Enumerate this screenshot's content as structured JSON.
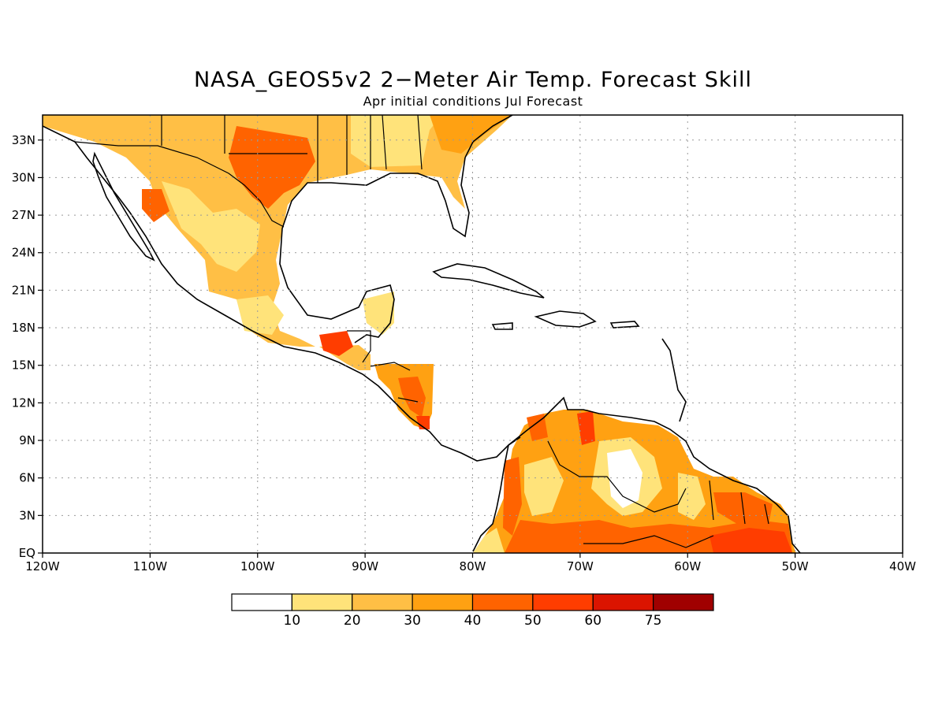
{
  "title": "NASA_GEOS5v2 2−Meter Air Temp. Forecast Skill",
  "subtitle": "Apr initial conditions  Jul Forecast",
  "map": {
    "lon_range": [
      -120,
      -40
    ],
    "lat_range": [
      0,
      35
    ],
    "lon_ticks": [
      "120W",
      "110W",
      "100W",
      "90W",
      "80W",
      "70W",
      "60W",
      "50W",
      "40W"
    ],
    "lat_ticks": [
      "EQ",
      "3N",
      "6N",
      "9N",
      "12N",
      "15N",
      "18N",
      "21N",
      "24N",
      "27N",
      "30N",
      "33N"
    ],
    "gridlines": true
  },
  "colorbar": {
    "labels": [
      "10",
      "20",
      "30",
      "40",
      "50",
      "60",
      "75"
    ],
    "colors": [
      "#ffffff",
      "#ffe37a",
      "#ffbf45",
      "#ffa112",
      "#ff6300",
      "#ff3d00",
      "#db1400",
      "#a00000"
    ]
  }
}
